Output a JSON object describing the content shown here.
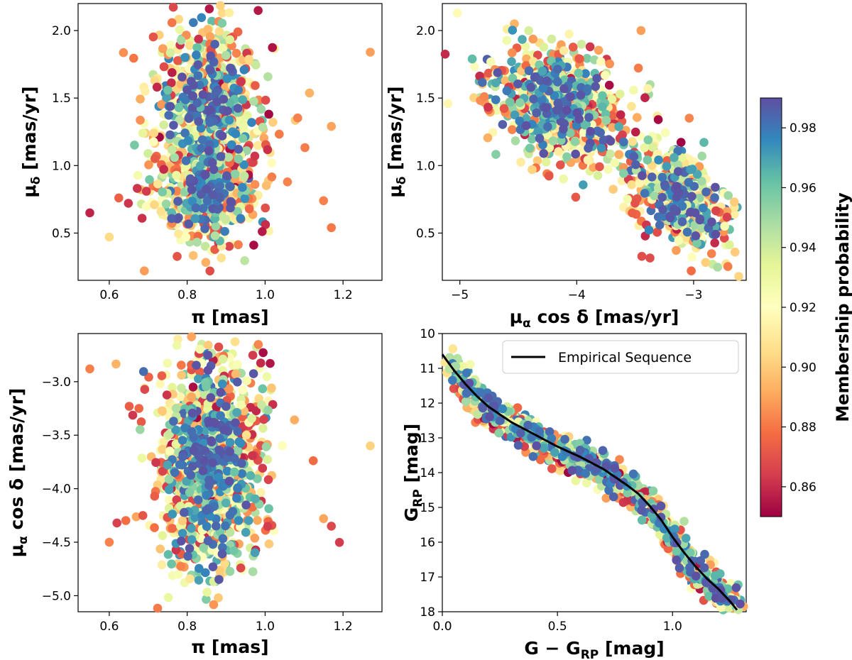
{
  "colorbar": {
    "label": "Membership probability",
    "range": [
      0.85,
      0.99
    ],
    "ticks": [
      "0.86",
      "0.88",
      "0.90",
      "0.92",
      "0.94",
      "0.96",
      "0.98"
    ],
    "tick_values": [
      0.86,
      0.88,
      0.9,
      0.92,
      0.94,
      0.96,
      0.98
    ],
    "colormap": "Spectral",
    "colors": [
      "#9e0142",
      "#d53e4f",
      "#f46d43",
      "#fdae61",
      "#fee08b",
      "#ffffbf",
      "#e6f598",
      "#abdda4",
      "#66c2a5",
      "#3288bd",
      "#5e4fa2"
    ]
  },
  "chart_data": [
    {
      "type": "scatter",
      "panel": "top-left",
      "x_label_main": "π",
      "x_label_unit": "[mas]",
      "y_label_main": "μ",
      "y_label_sub": "δ",
      "y_label_unit": "[mas/yr]",
      "xlim": [
        0.52,
        1.3
      ],
      "ylim": [
        0.15,
        2.2
      ],
      "xticks": [
        "0.6",
        "0.8",
        "1.0",
        "1.2"
      ],
      "xtick_values": [
        0.6,
        0.8,
        1.0,
        1.2
      ],
      "yticks": [
        "0.5",
        "1.0",
        "1.5",
        "2.0"
      ],
      "ytick_values": [
        0.5,
        1.0,
        1.5,
        2.0
      ],
      "n_points": 1400,
      "members": {
        "x_mean": 0.855,
        "x_sd": 0.075,
        "y_clusters": [
          {
            "mean": 1.45,
            "sd": 0.27,
            "weight": 0.55
          },
          {
            "mean": 0.82,
            "sd": 0.18,
            "weight": 0.45
          }
        ]
      },
      "outliers": [
        {
          "x": 1.27,
          "y": 1.84
        },
        {
          "x": 0.69,
          "y": 0.22
        },
        {
          "x": 0.89,
          "y": 2.13
        },
        {
          "x": 1.17,
          "y": 1.29
        },
        {
          "x": 1.15,
          "y": 0.74
        },
        {
          "x": 1.17,
          "y": 0.54
        },
        {
          "x": 0.55,
          "y": 0.65
        },
        {
          "x": 0.6,
          "y": 0.47
        }
      ]
    },
    {
      "type": "scatter",
      "panel": "top-right",
      "x_label_main": "μ",
      "x_label_sub": "α",
      "x_label_mid": " cos ",
      "x_label_delta": "δ",
      "x_label_unit": "[mas/yr]",
      "y_label_main": "μ",
      "y_label_sub": "δ",
      "y_label_unit": "[mas/yr]",
      "xlim": [
        -5.15,
        -2.55
      ],
      "ylim": [
        0.15,
        2.2
      ],
      "xticks": [
        "−5",
        "−4",
        "−3"
      ],
      "xtick_values": [
        -5,
        -4,
        -3
      ],
      "yticks": [
        "0.5",
        "1.0",
        "1.5",
        "2.0"
      ],
      "ytick_values": [
        0.5,
        1.0,
        1.5,
        2.0
      ],
      "n_points": 1400,
      "members": {
        "clusters": [
          {
            "x_mean": -4.15,
            "x_sd": 0.28,
            "y_mean": 1.45,
            "y_sd": 0.2,
            "weight": 0.55
          },
          {
            "x_mean": -3.15,
            "x_sd": 0.2,
            "y_mean": 0.78,
            "y_sd": 0.17,
            "weight": 0.45
          }
        ]
      },
      "outliers": [
        {
          "x": -5.02,
          "y": 2.13
        },
        {
          "x": -3.02,
          "y": 0.22
        },
        {
          "x": -3.45,
          "y": 2.0
        },
        {
          "x": -2.65,
          "y": 0.64
        }
      ]
    },
    {
      "type": "scatter",
      "panel": "bottom-left",
      "x_label_main": "π",
      "x_label_unit": "[mas]",
      "y_label_main": "μ",
      "y_label_sub": "α",
      "y_label_mid": " cos ",
      "y_label_delta": "δ",
      "y_label_unit": "[mas/yr]",
      "xlim": [
        0.52,
        1.3
      ],
      "ylim": [
        -5.15,
        -2.55
      ],
      "xticks": [
        "0.6",
        "0.8",
        "1.0",
        "1.2"
      ],
      "xtick_values": [
        0.6,
        0.8,
        1.0,
        1.2
      ],
      "yticks": [
        "−3.0",
        "−3.5",
        "−4.0",
        "−4.5",
        "−5.0"
      ],
      "ytick_values": [
        -3.0,
        -3.5,
        -4.0,
        -4.5,
        -5.0
      ],
      "n_points": 1400,
      "members": {
        "x_mean": 0.855,
        "x_sd": 0.075,
        "y_mean": -3.75,
        "y_sd": 0.5
      },
      "outliers": [
        {
          "x": 1.27,
          "y": -3.6
        },
        {
          "x": 1.17,
          "y": -4.35
        },
        {
          "x": 1.15,
          "y": -4.28
        },
        {
          "x": 0.55,
          "y": -2.88
        },
        {
          "x": 0.6,
          "y": -4.5
        },
        {
          "x": 0.88,
          "y": -5.02
        }
      ]
    },
    {
      "type": "scatter",
      "panel": "bottom-right",
      "x_label_main": "G − G",
      "x_label_sub": "RP",
      "x_label_unit": "[mag]",
      "y_label_main": "G",
      "y_label_sub": "RP",
      "y_label_unit": "[mag]",
      "xlim": [
        0.0,
        1.32
      ],
      "ylim": [
        18.0,
        10.0
      ],
      "y_inverted": true,
      "xticks": [
        "0.0",
        "0.5",
        "1.0"
      ],
      "xtick_values": [
        0.0,
        0.5,
        1.0
      ],
      "yticks": [
        "10",
        "11",
        "12",
        "13",
        "14",
        "15",
        "16",
        "17",
        "18"
      ],
      "ytick_values": [
        10,
        11,
        12,
        13,
        14,
        15,
        16,
        17,
        18
      ],
      "n_points": 1300,
      "legend": {
        "label": "Empirical Sequence",
        "position": "top-right"
      },
      "sequence": {
        "x": [
          0.0,
          0.05,
          0.1,
          0.15,
          0.2,
          0.3,
          0.4,
          0.5,
          0.6,
          0.7,
          0.8,
          0.85,
          0.9,
          0.95,
          1.0,
          1.05,
          1.1,
          1.15,
          1.2,
          1.25,
          1.28
        ],
        "y": [
          10.6,
          11.05,
          11.45,
          11.8,
          12.1,
          12.55,
          12.9,
          13.25,
          13.55,
          13.9,
          14.35,
          14.6,
          14.95,
          15.35,
          15.85,
          16.3,
          16.7,
          17.05,
          17.35,
          17.7,
          17.95
        ]
      },
      "scatter_width_mag": 0.32
    }
  ]
}
